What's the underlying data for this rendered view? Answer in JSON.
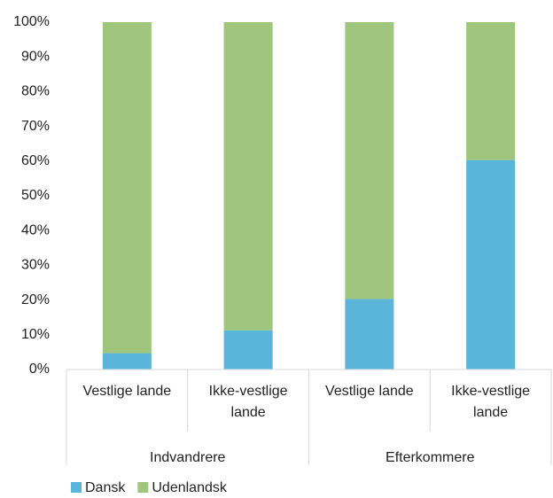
{
  "chart_data": {
    "type": "stacked_bar",
    "categories": [
      "Vestlige lande",
      "Ikke-vestlige lande",
      "Vestlige lande",
      "Ikke-vestlige lande"
    ],
    "groups": [
      "Indvandrere",
      "Efterkommere"
    ],
    "series": [
      {
        "name": "Dansk",
        "color": "#5bb5da",
        "values": [
          4.7,
          11.3,
          20.3,
          60.3
        ]
      },
      {
        "name": "Udenlandsk",
        "color": "#9fc67c",
        "values": [
          95.3,
          88.7,
          79.7,
          39.7
        ]
      }
    ],
    "ylim": [
      0,
      100
    ],
    "yticks": [
      {
        "value": 0,
        "label": "0%"
      },
      {
        "value": 10,
        "label": "10%"
      },
      {
        "value": 20,
        "label": "20%"
      },
      {
        "value": 30,
        "label": "30%"
      },
      {
        "value": 40,
        "label": "40%"
      },
      {
        "value": 50,
        "label": "50%"
      },
      {
        "value": 60,
        "label": "60%"
      },
      {
        "value": 70,
        "label": "70%"
      },
      {
        "value": 80,
        "label": "80%"
      },
      {
        "value": 90,
        "label": "90%"
      },
      {
        "value": 100,
        "label": "100%"
      }
    ],
    "grid": false,
    "legend": "bottom-left"
  }
}
